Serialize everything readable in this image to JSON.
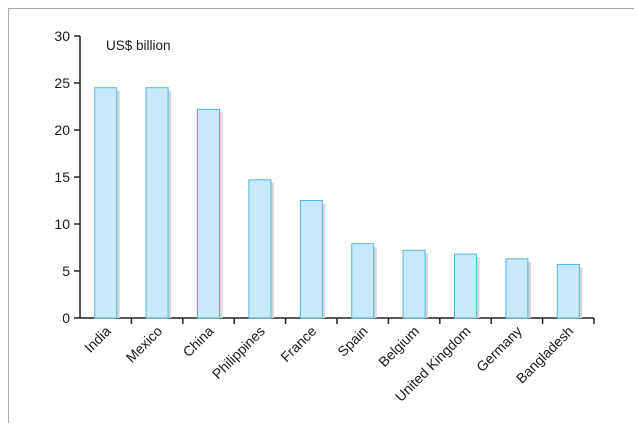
{
  "chart_data": {
    "type": "bar",
    "unit_label": "US$ billion",
    "categories": [
      "India",
      "Mexico",
      "China",
      "Philippines",
      "France",
      "Spain",
      "Belgium",
      "United Kingdom",
      "Germany",
      "Bangladesh"
    ],
    "values": [
      24.5,
      24.5,
      22.2,
      14.7,
      12.5,
      7.9,
      7.2,
      6.8,
      6.3,
      5.7
    ],
    "ylim": [
      0,
      30
    ],
    "yticks": [
      0,
      5,
      10,
      15,
      20,
      25,
      30
    ],
    "grid": false,
    "colors": {
      "bar_fill": "#c7e9f9",
      "bar_stroke": "#4fb8e2",
      "axis": "#222222"
    }
  }
}
